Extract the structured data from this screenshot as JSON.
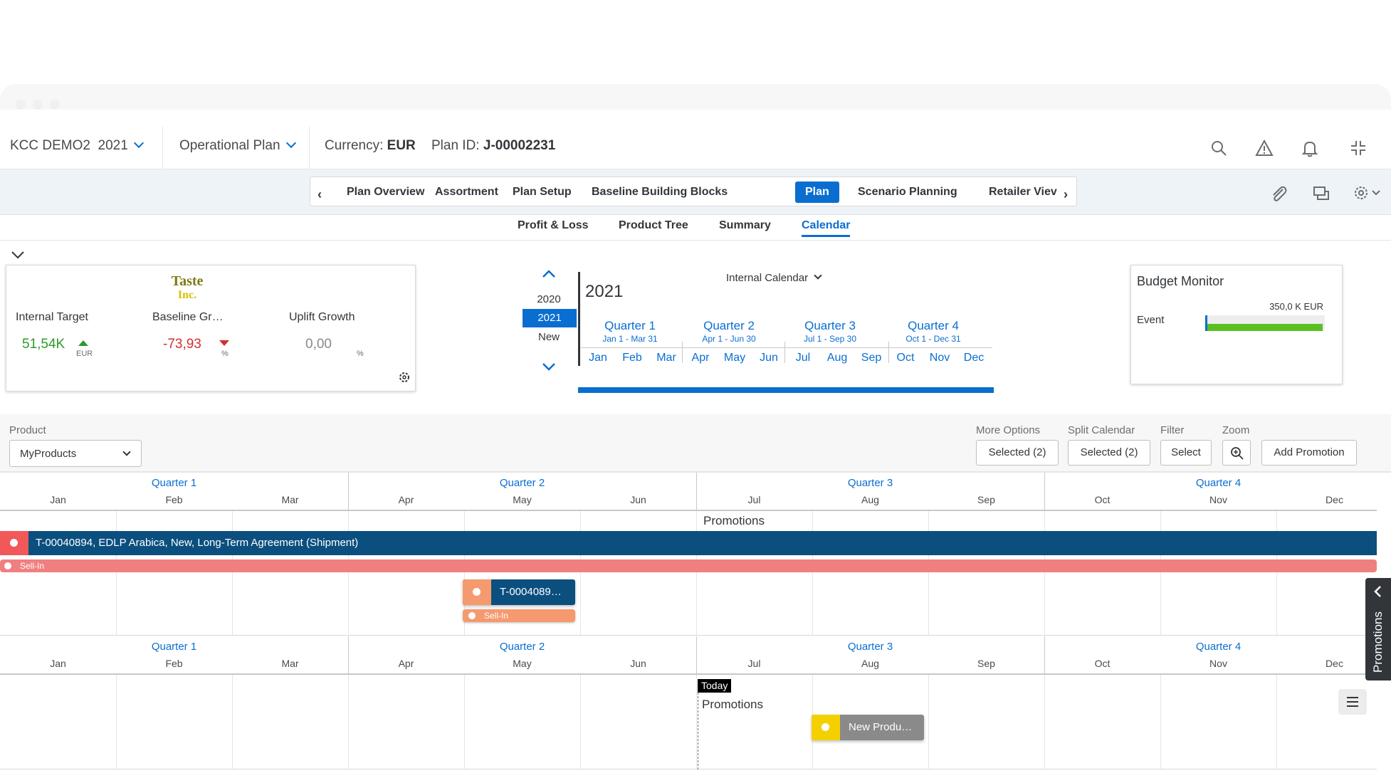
{
  "shell": {
    "plan_name": "KCC DEMO2",
    "plan_year": "2021",
    "plan_type": "Operational Plan",
    "currency_label": "Currency:",
    "currency_value": "EUR",
    "plan_id_label": "Plan ID:",
    "plan_id_value": "J-00002231"
  },
  "tabs": [
    {
      "label": "Plan Overview",
      "active": false
    },
    {
      "label": "Assortment",
      "active": false
    },
    {
      "label": "Plan Setup",
      "active": false
    },
    {
      "label": "Baseline Building Blocks",
      "active": false
    },
    {
      "label": "Plan",
      "active": true
    },
    {
      "label": "Scenario Planning",
      "active": false
    },
    {
      "label": "Retailer Viev",
      "active": false
    }
  ],
  "subtabs": [
    {
      "label": "Profit & Loss",
      "active": false
    },
    {
      "label": "Product Tree",
      "active": false
    },
    {
      "label": "Summary",
      "active": false
    },
    {
      "label": "Calendar",
      "active": true
    }
  ],
  "kpi": {
    "logo_text": "Taste Inc.",
    "items": [
      {
        "label": "Internal Target",
        "value": "51,54K",
        "unit": "EUR",
        "trend": "up",
        "color": "#2b9a2b"
      },
      {
        "label": "Baseline Gr…",
        "value": "-73,93",
        "unit": "%",
        "trend": "down",
        "color": "#d32f2f"
      },
      {
        "label": "Uplift Growth",
        "value": "0,00",
        "unit": "%",
        "trend": "none",
        "color": "#8a8a8a"
      }
    ]
  },
  "calendar_nav": {
    "years": [
      "2020",
      "2021",
      "New"
    ],
    "selected_year": "2021",
    "title": "2021",
    "calendar_type": "Internal Calendar",
    "quarters": [
      {
        "label": "Quarter 1",
        "range": "Jan 1 - Mar 31"
      },
      {
        "label": "Quarter 2",
        "range": "Apr 1 - Jun 30"
      },
      {
        "label": "Quarter 3",
        "range": "Jul 1 - Sep 30"
      },
      {
        "label": "Quarter 4",
        "range": "Oct 1 - Dec 31"
      }
    ],
    "months": [
      "Jan",
      "Feb",
      "Mar",
      "Apr",
      "May",
      "Jun",
      "Jul",
      "Aug",
      "Sep",
      "Oct",
      "Nov",
      "Dec"
    ]
  },
  "budget": {
    "title": "Budget Monitor",
    "row_label": "Event",
    "amount": "350,0 K EUR",
    "fill_fraction": 0.98,
    "bar_color": "#5bbf21"
  },
  "toolbar": {
    "product_label": "Product",
    "product_value": "MyProducts",
    "more_options_label": "More Options",
    "more_options_value": "Selected (2)",
    "split_label": "Split Calendar",
    "split_value": "Selected (2)",
    "filter_label": "Filter",
    "filter_value": "Select",
    "zoom_label": "Zoom",
    "add_label": "Add Promotion"
  },
  "timeline": {
    "quarters": [
      "Quarter 1",
      "Quarter 2",
      "Quarter 3",
      "Quarter 4"
    ],
    "months": [
      "Jan",
      "Feb",
      "Mar",
      "Apr",
      "May",
      "Jun",
      "Jul",
      "Aug",
      "Sep",
      "Oct",
      "Nov",
      "Dec"
    ],
    "section_title": "Promotions",
    "today_label": "Today",
    "promo_main": "T-00040894, EDLP Arabica, New, Long-Term Agreement (Shipment)",
    "sellin_label": "Sell-In",
    "promo_small": "T-0004089…",
    "sellin_small": "Sell-In",
    "new_product": "New Produ…",
    "side_panel": "Promotions"
  },
  "colors": {
    "brand_blue": "#0a6ed1",
    "promo_bar": "#0b4f7f",
    "sellin": "#f08080",
    "accent_orange": "#f59a6e",
    "new_product_yellow": "#f5d000"
  }
}
